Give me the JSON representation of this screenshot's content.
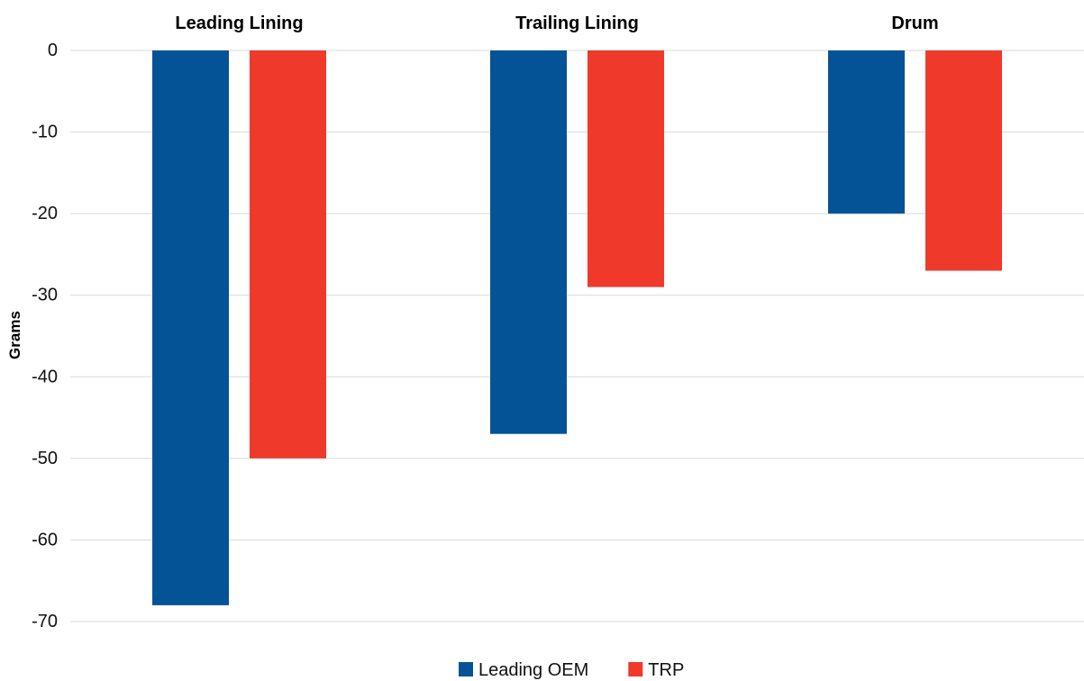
{
  "chart_data": {
    "type": "bar",
    "categories": [
      "Leading Lining",
      "Trailing Lining",
      "Drum"
    ],
    "series": [
      {
        "name": "Leading OEM",
        "values": [
          -68,
          -47,
          -20
        ],
        "color": "#045396"
      },
      {
        "name": "TRP",
        "values": [
          -50,
          -29,
          -27
        ],
        "color": "#ef3a2b"
      }
    ],
    "title": "",
    "xlabel": "",
    "ylabel": "Grams",
    "ylim": [
      -70,
      0
    ],
    "yticks": [
      0,
      -10,
      -20,
      -30,
      -40,
      -50,
      -60,
      -70
    ],
    "grid": true,
    "legend_position": "bottom",
    "category_labels_position": "top"
  }
}
